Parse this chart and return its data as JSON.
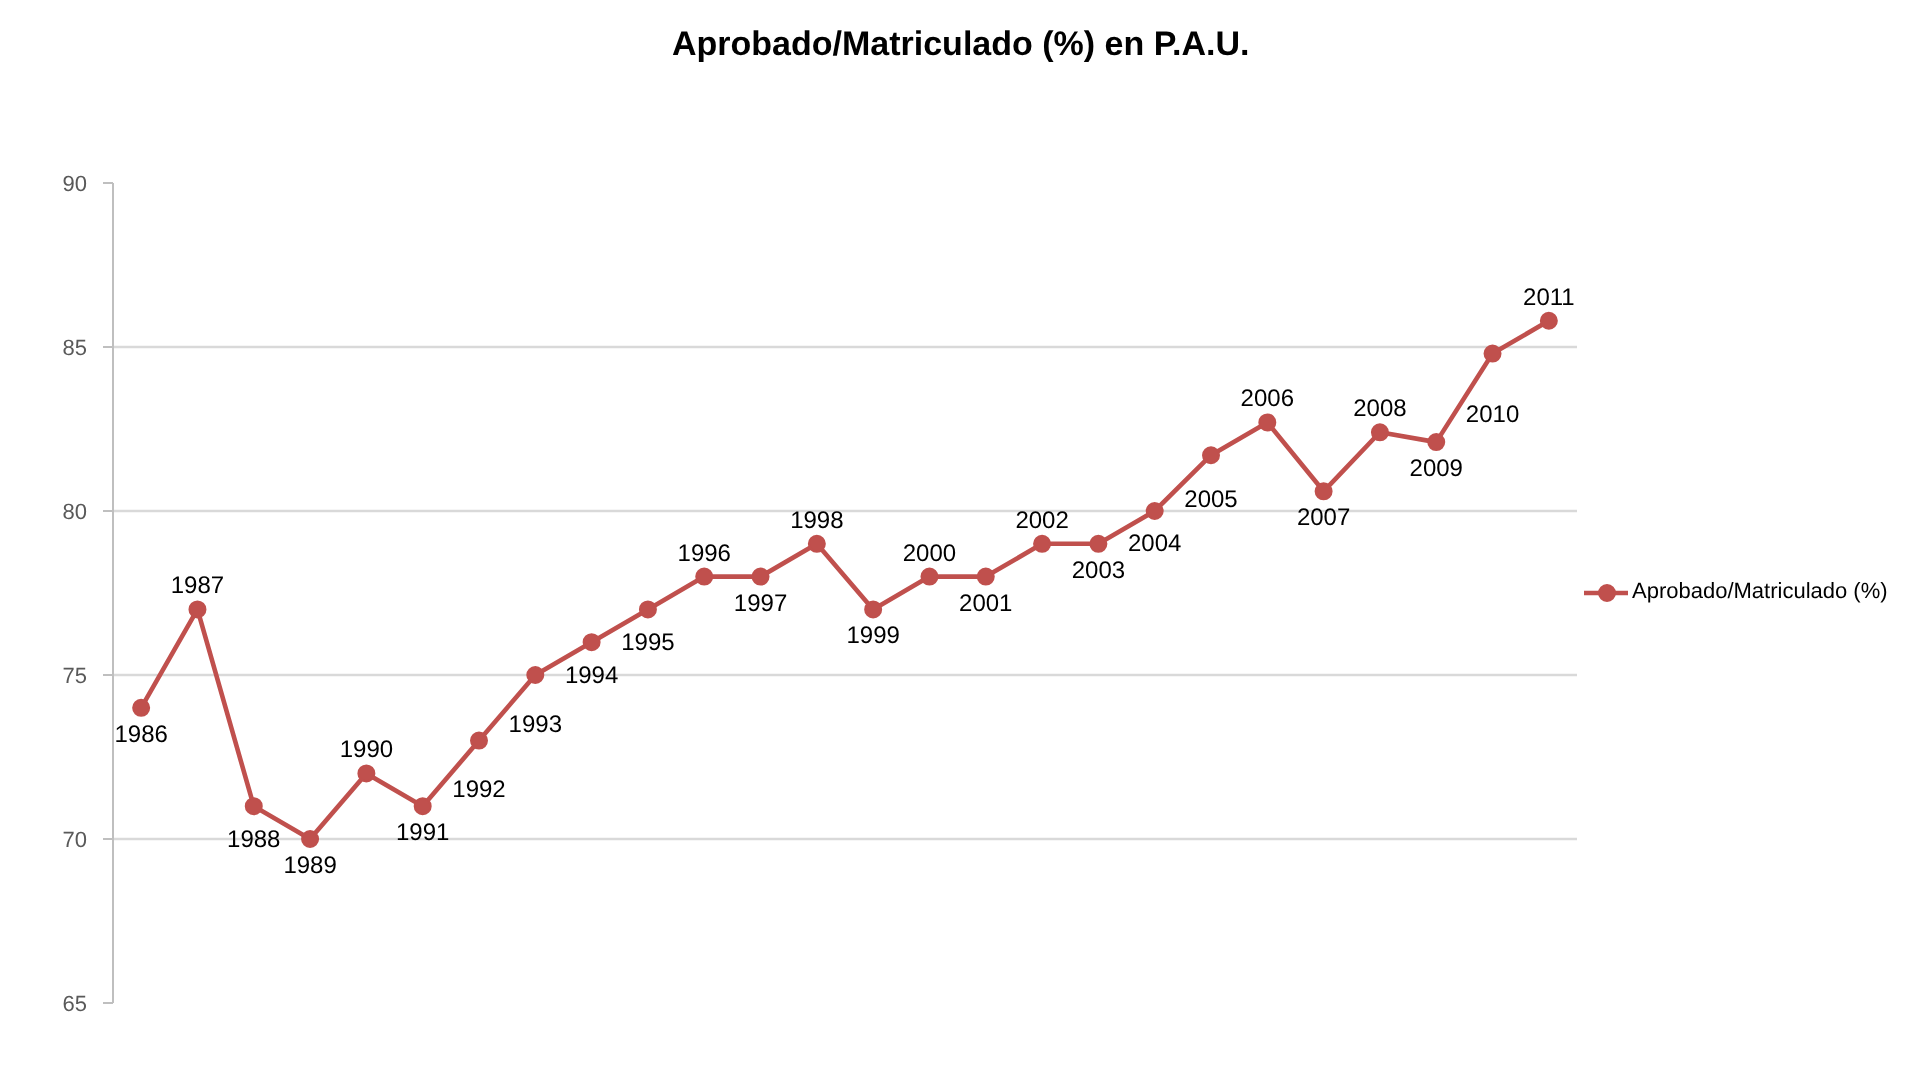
{
  "chart_data": {
    "type": "line",
    "title": "Aprobado/Matriculado (%) en P.A.U.",
    "categories": [
      "1986",
      "1987",
      "1988",
      "1989",
      "1990",
      "1991",
      "1992",
      "1993",
      "1994",
      "1995",
      "1996",
      "1997",
      "1998",
      "1999",
      "2000",
      "2001",
      "2002",
      "2003",
      "2004",
      "2005",
      "2006",
      "2007",
      "2008",
      "2009",
      "2010",
      "2011"
    ],
    "series": [
      {
        "name": "Aprobado/Matriculado (%)",
        "color": "#c0504d",
        "values": [
          74,
          77,
          71,
          70,
          72,
          71,
          73,
          75,
          76,
          77,
          78,
          78,
          79,
          77,
          78,
          78,
          79,
          79,
          80,
          81.7,
          82.7,
          80.6,
          82.4,
          82.1,
          84.8,
          85.8
        ]
      }
    ],
    "ylim": [
      65,
      90
    ],
    "yticks": [
      65,
      70,
      75,
      80,
      85,
      90
    ],
    "tick_labels": "y",
    "grid": "y",
    "legend": "right",
    "marker": "circle",
    "line_style": "solid"
  }
}
